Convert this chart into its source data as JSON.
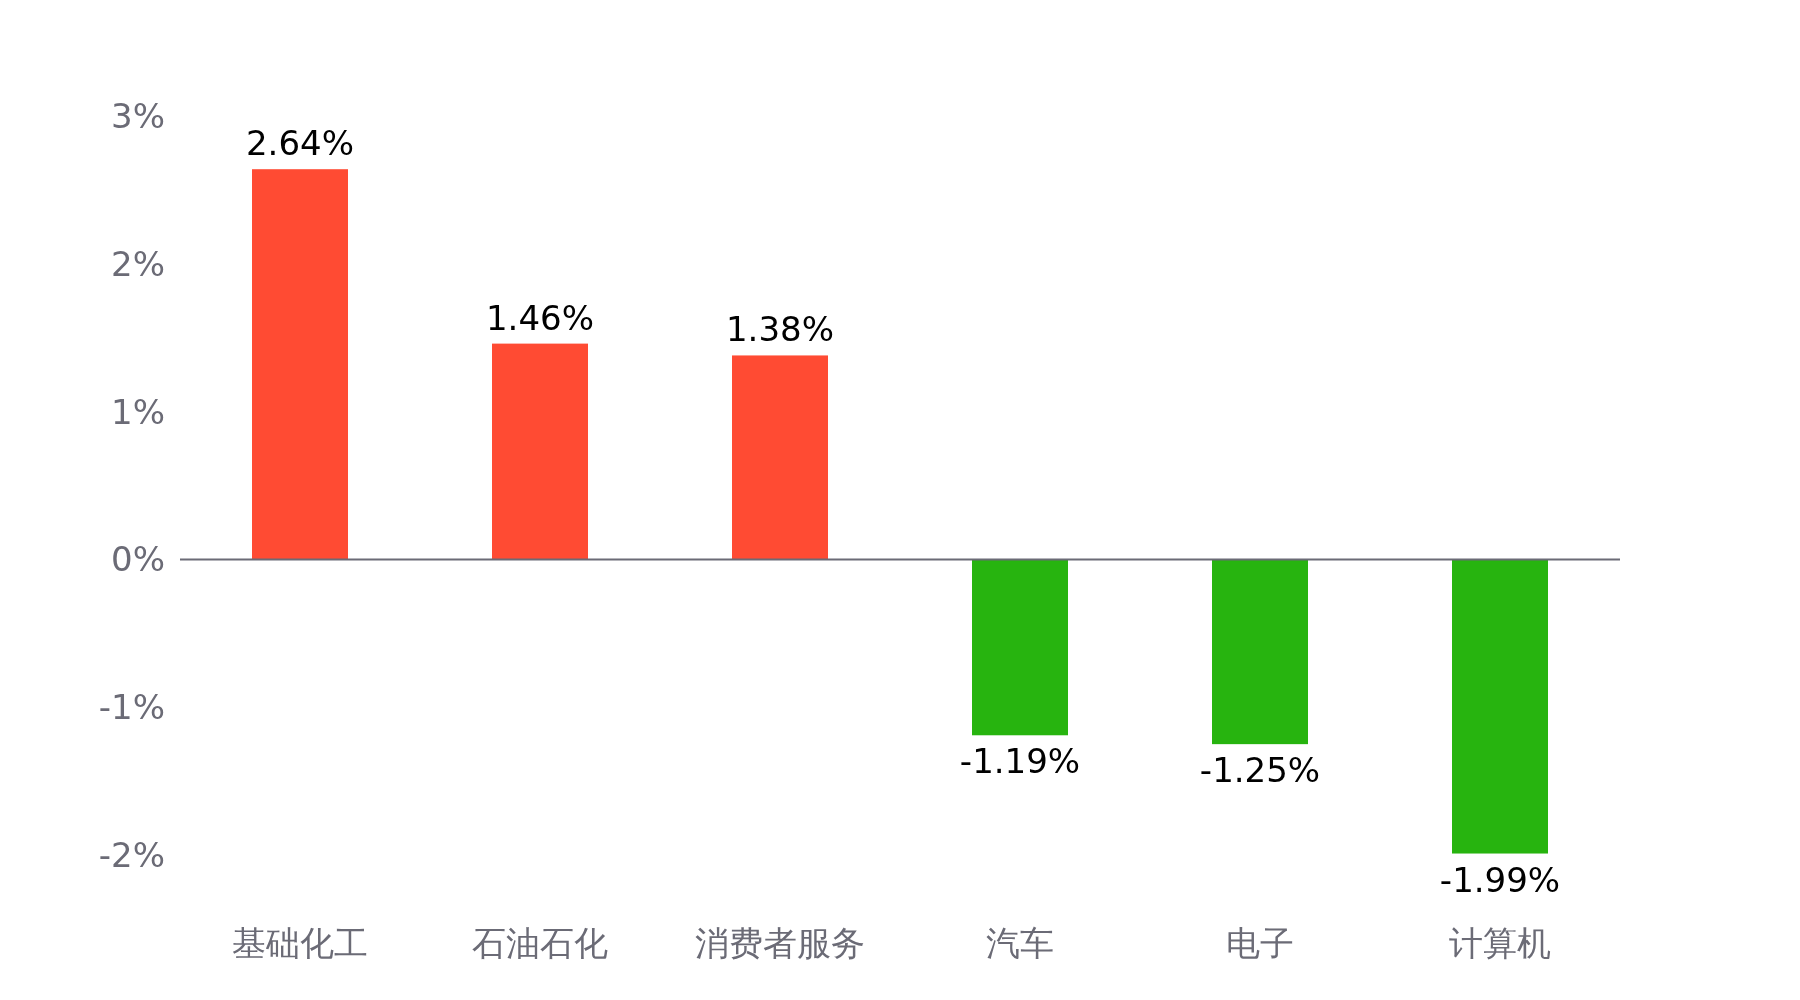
{
  "chart_data": {
    "type": "bar",
    "categories": [
      "基础化工",
      "石油石化",
      "消费者服务",
      "汽车",
      "电子",
      "计算机"
    ],
    "values": [
      2.64,
      1.46,
      1.38,
      -1.19,
      -1.25,
      -1.99
    ],
    "colors": [
      "#ff4b33",
      "#ff4b33",
      "#ff4b33",
      "#27b40f",
      "#27b40f",
      "#27b40f"
    ],
    "value_labels": [
      "2.64%",
      "1.46%",
      "1.38%",
      "-1.19%",
      "-1.25%",
      "-1.99%"
    ],
    "ylim": [
      -2,
      3
    ],
    "yticks": [
      {
        "value": -2,
        "label": "-2%"
      },
      {
        "value": -1,
        "label": "-1%"
      },
      {
        "value": 0,
        "label": "0%"
      },
      {
        "value": 1,
        "label": "1%"
      },
      {
        "value": 2,
        "label": "2%"
      },
      {
        "value": 3,
        "label": "3%"
      }
    ]
  }
}
